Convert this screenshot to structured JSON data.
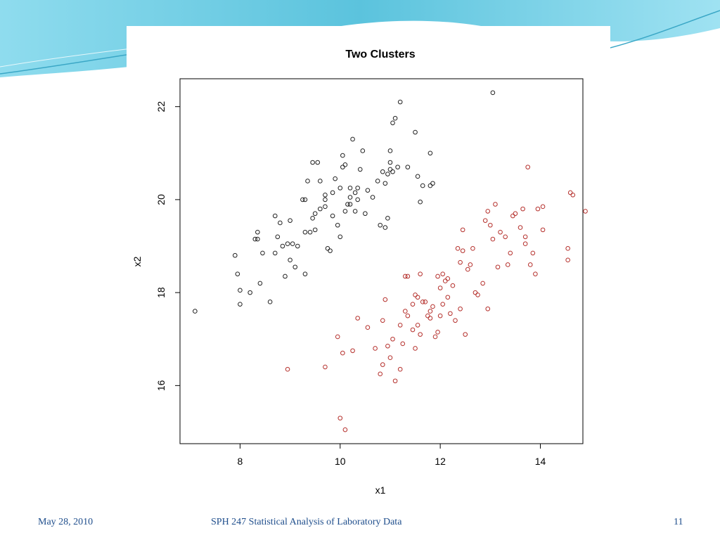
{
  "footer": {
    "date": "May 28, 2010",
    "course": "SPH 247 Statistical Analysis of Laboratory Data",
    "page": "11"
  },
  "colors": {
    "cluster1": "#222222",
    "cluster2": "#b5302c",
    "footer_text": "#1f4e8c",
    "header_wave": "#5bc3dd"
  },
  "chart_data": {
    "type": "scatter",
    "title": "Two Clusters",
    "xlabel": "x1",
    "ylabel": "x2",
    "xlim": [
      6.8,
      14.85
    ],
    "ylim": [
      14.75,
      22.6
    ],
    "xticks": [
      8,
      10,
      12,
      14
    ],
    "yticks": [
      16,
      18,
      20,
      22
    ],
    "grid": false,
    "series": [
      {
        "color": "#222222",
        "points": [
          [
            7.1,
            17.6
          ],
          [
            7.9,
            18.8
          ],
          [
            7.95,
            18.4
          ],
          [
            8.0,
            18.05
          ],
          [
            8.0,
            17.75
          ],
          [
            8.2,
            18.0
          ],
          [
            8.3,
            19.15
          ],
          [
            8.35,
            19.3
          ],
          [
            8.35,
            19.15
          ],
          [
            8.4,
            18.2
          ],
          [
            8.45,
            18.85
          ],
          [
            8.6,
            17.8
          ],
          [
            8.7,
            19.65
          ],
          [
            8.7,
            18.85
          ],
          [
            8.75,
            19.2
          ],
          [
            8.8,
            19.5
          ],
          [
            8.85,
            19.0
          ],
          [
            8.9,
            18.35
          ],
          [
            8.95,
            19.05
          ],
          [
            9.0,
            19.55
          ],
          [
            9.0,
            18.7
          ],
          [
            9.05,
            19.05
          ],
          [
            9.1,
            18.55
          ],
          [
            9.15,
            19.0
          ],
          [
            9.25,
            20.0
          ],
          [
            9.3,
            20.0
          ],
          [
            9.3,
            19.3
          ],
          [
            9.3,
            18.4
          ],
          [
            9.35,
            20.4
          ],
          [
            9.4,
            19.3
          ],
          [
            9.45,
            19.6
          ],
          [
            9.45,
            20.8
          ],
          [
            9.5,
            19.7
          ],
          [
            9.5,
            19.35
          ],
          [
            9.55,
            20.8
          ],
          [
            9.6,
            20.4
          ],
          [
            9.6,
            19.8
          ],
          [
            9.7,
            20.0
          ],
          [
            9.7,
            20.1
          ],
          [
            9.7,
            19.85
          ],
          [
            9.75,
            18.95
          ],
          [
            9.8,
            18.9
          ],
          [
            9.85,
            19.65
          ],
          [
            9.85,
            20.15
          ],
          [
            9.9,
            20.45
          ],
          [
            9.95,
            19.45
          ],
          [
            10.0,
            20.25
          ],
          [
            10.0,
            19.2
          ],
          [
            10.05,
            20.7
          ],
          [
            10.05,
            20.95
          ],
          [
            10.1,
            19.75
          ],
          [
            10.1,
            20.75
          ],
          [
            10.15,
            19.9
          ],
          [
            10.2,
            20.05
          ],
          [
            10.2,
            19.9
          ],
          [
            10.2,
            20.25
          ],
          [
            10.25,
            21.3
          ],
          [
            10.3,
            19.75
          ],
          [
            10.3,
            20.15
          ],
          [
            10.35,
            20.0
          ],
          [
            10.35,
            20.25
          ],
          [
            10.4,
            20.65
          ],
          [
            10.45,
            21.05
          ],
          [
            10.5,
            19.7
          ],
          [
            10.55,
            20.2
          ],
          [
            10.65,
            20.05
          ],
          [
            10.75,
            20.4
          ],
          [
            10.8,
            19.45
          ],
          [
            10.85,
            20.6
          ],
          [
            10.9,
            19.4
          ],
          [
            10.9,
            20.35
          ],
          [
            10.95,
            19.6
          ],
          [
            10.95,
            20.55
          ],
          [
            11.0,
            21.05
          ],
          [
            11.0,
            20.8
          ],
          [
            11.0,
            20.65
          ],
          [
            11.05,
            21.65
          ],
          [
            11.05,
            20.6
          ],
          [
            11.1,
            21.75
          ],
          [
            11.15,
            20.7
          ],
          [
            11.2,
            22.1
          ],
          [
            11.35,
            20.7
          ],
          [
            11.5,
            21.45
          ],
          [
            11.55,
            20.5
          ],
          [
            11.6,
            19.95
          ],
          [
            11.65,
            20.3
          ],
          [
            11.8,
            21.0
          ],
          [
            11.8,
            20.3
          ],
          [
            11.85,
            20.35
          ],
          [
            13.05,
            22.3
          ]
        ]
      },
      {
        "color": "#b5302c",
        "points": [
          [
            8.95,
            16.35
          ],
          [
            9.7,
            16.4
          ],
          [
            9.95,
            17.05
          ],
          [
            10.0,
            15.3
          ],
          [
            10.05,
            16.7
          ],
          [
            10.1,
            15.05
          ],
          [
            10.25,
            16.75
          ],
          [
            10.35,
            17.45
          ],
          [
            10.55,
            17.25
          ],
          [
            10.7,
            16.8
          ],
          [
            10.8,
            16.25
          ],
          [
            10.85,
            16.45
          ],
          [
            10.85,
            17.4
          ],
          [
            10.9,
            17.85
          ],
          [
            10.95,
            16.85
          ],
          [
            11.0,
            16.6
          ],
          [
            11.05,
            17.0
          ],
          [
            11.1,
            16.1
          ],
          [
            11.2,
            17.3
          ],
          [
            11.2,
            16.35
          ],
          [
            11.25,
            16.9
          ],
          [
            11.3,
            17.6
          ],
          [
            11.3,
            18.35
          ],
          [
            11.35,
            18.35
          ],
          [
            11.35,
            17.5
          ],
          [
            11.45,
            17.2
          ],
          [
            11.45,
            17.75
          ],
          [
            11.5,
            16.8
          ],
          [
            11.5,
            17.95
          ],
          [
            11.55,
            17.3
          ],
          [
            11.55,
            17.9
          ],
          [
            11.6,
            17.1
          ],
          [
            11.6,
            18.4
          ],
          [
            11.65,
            17.8
          ],
          [
            11.7,
            17.8
          ],
          [
            11.75,
            17.5
          ],
          [
            11.8,
            17.45
          ],
          [
            11.8,
            17.6
          ],
          [
            11.85,
            17.7
          ],
          [
            11.9,
            17.05
          ],
          [
            11.95,
            17.15
          ],
          [
            11.95,
            18.35
          ],
          [
            12.0,
            18.1
          ],
          [
            12.0,
            17.5
          ],
          [
            12.05,
            18.4
          ],
          [
            12.05,
            17.75
          ],
          [
            12.1,
            18.25
          ],
          [
            12.15,
            18.3
          ],
          [
            12.15,
            17.9
          ],
          [
            12.2,
            17.55
          ],
          [
            12.25,
            18.15
          ],
          [
            12.3,
            17.4
          ],
          [
            12.35,
            18.95
          ],
          [
            12.4,
            17.65
          ],
          [
            12.4,
            18.65
          ],
          [
            12.45,
            18.9
          ],
          [
            12.45,
            19.35
          ],
          [
            12.5,
            17.1
          ],
          [
            12.55,
            18.5
          ],
          [
            12.6,
            18.6
          ],
          [
            12.65,
            18.95
          ],
          [
            12.7,
            18.0
          ],
          [
            12.75,
            17.95
          ],
          [
            12.85,
            18.2
          ],
          [
            12.9,
            19.55
          ],
          [
            12.95,
            19.75
          ],
          [
            12.95,
            17.65
          ],
          [
            13.0,
            19.45
          ],
          [
            13.05,
            19.15
          ],
          [
            13.1,
            19.9
          ],
          [
            13.15,
            18.55
          ],
          [
            13.2,
            19.3
          ],
          [
            13.3,
            19.2
          ],
          [
            13.35,
            18.6
          ],
          [
            13.4,
            18.85
          ],
          [
            13.45,
            19.65
          ],
          [
            13.5,
            19.7
          ],
          [
            13.6,
            19.4
          ],
          [
            13.65,
            19.8
          ],
          [
            13.7,
            19.2
          ],
          [
            13.7,
            19.05
          ],
          [
            13.75,
            20.7
          ],
          [
            13.8,
            18.6
          ],
          [
            13.85,
            18.85
          ],
          [
            13.9,
            18.4
          ],
          [
            13.95,
            19.8
          ],
          [
            14.05,
            19.85
          ],
          [
            14.05,
            19.35
          ],
          [
            14.55,
            18.95
          ],
          [
            14.55,
            18.7
          ],
          [
            14.6,
            20.15
          ],
          [
            14.65,
            20.1
          ],
          [
            14.9,
            19.75
          ]
        ]
      }
    ]
  }
}
